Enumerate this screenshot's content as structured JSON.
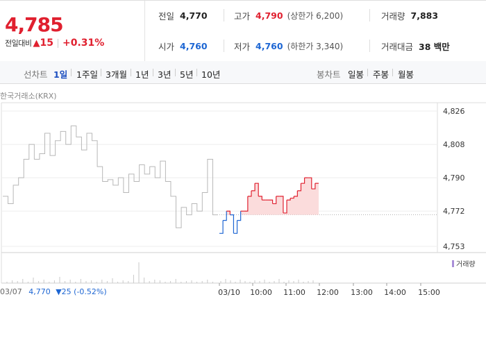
{
  "quote": {
    "price": "4,785",
    "change_label": "전일대비",
    "change_arrow": "▲",
    "change_value": "15",
    "change_pct": "+0.31%"
  },
  "stats": {
    "prev_close_label": "전일",
    "prev_close": "4,770",
    "high_label": "고가",
    "high": "4,790",
    "upper_limit": "(상한가 6,200)",
    "volume_label": "거래량",
    "volume": "7,883",
    "open_label": "시가",
    "open": "4,760",
    "low_label": "저가",
    "low": "4,760",
    "lower_limit": "(하한가 3,340)",
    "trade_value_label": "거래대금",
    "trade_value": "38 백만"
  },
  "toolbar": {
    "line_label": "선차트",
    "periods": [
      "1일",
      "1주일",
      "3개월",
      "1년",
      "3년",
      "5년",
      "10년"
    ],
    "active_period": "1일",
    "candle_label": "봉차트",
    "candles": [
      "일봉",
      "주봉",
      "월봉"
    ]
  },
  "source": "한국거래소(KRX)",
  "volume_legend": "거래량",
  "footer": {
    "date": "03/07",
    "prev_price": "4,770",
    "prev_change": "▼25 (-0.52%)"
  },
  "colors": {
    "up": "#e0202f",
    "down": "#1d66d3",
    "history": "#b8b8b8"
  },
  "chart_data": {
    "type": "line",
    "title": "",
    "xlabel": "",
    "ylabel": "",
    "y_ticks": [
      "4,826",
      "4,808",
      "4,790",
      "4,772",
      "4,753"
    ],
    "ylim": [
      4750,
      4830
    ],
    "x_ticks": [
      "03/10",
      "10:00",
      "11:00",
      "12:00",
      "13:00",
      "14:00",
      "15:00"
    ],
    "previous_close": 4770,
    "series": [
      {
        "values_prev_day": [
          4780,
          4776,
          4786,
          4790,
          4800,
          4808,
          4800,
          4803,
          4814,
          4802,
          4810,
          4815,
          4808,
          4818,
          4812,
          4805,
          4814,
          4810,
          4796,
          4788,
          4789,
          4786,
          4790,
          4782,
          4792,
          4788,
          4797,
          4792,
          4796,
          4790,
          4799,
          4788,
          4780,
          4763,
          4774,
          4770,
          4776,
          4772,
          4782,
          4800,
          4770,
          4770
        ],
        "values_today": [
          4760,
          4767,
          4772,
          4770,
          4760,
          4767,
          4772,
          4772,
          4780,
          4783,
          4787,
          4780,
          4778,
          4778,
          4778,
          4776,
          4780,
          4780,
          4771,
          4778,
          4779,
          4780,
          4783,
          4787,
          4790,
          4790,
          4784,
          4787,
          4787
        ]
      }
    ]
  }
}
